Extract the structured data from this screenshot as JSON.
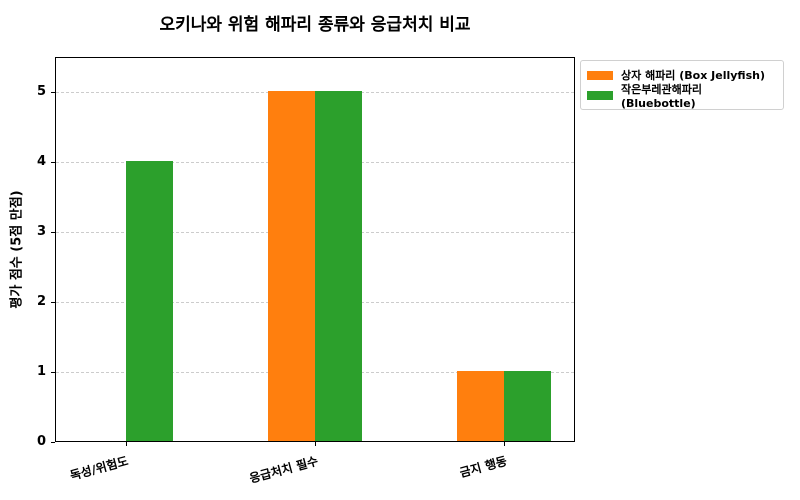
{
  "chart_data": {
    "type": "bar",
    "title": "오키나와 위험 해파리 종류와 응급처치 비교",
    "xlabel": "",
    "ylabel": "평가 점수 (5점 만점)",
    "categories": [
      "독성/위험도",
      "응급처치 필수",
      "금지 행동"
    ],
    "series": [
      {
        "name": "상자 해파리 (Box Jellyfish)",
        "color": "#ff7f0e",
        "values": [
          0,
          5,
          1
        ]
      },
      {
        "name": "작은부레관해파리 (Bluebottle)",
        "color": "#2ca02c",
        "values": [
          4,
          5,
          1
        ]
      }
    ],
    "ylim": [
      0,
      5.5
    ],
    "yticks": [
      "0",
      "1",
      "2",
      "3",
      "4",
      "5"
    ],
    "grid": true,
    "legend_position": "outside upper right"
  }
}
